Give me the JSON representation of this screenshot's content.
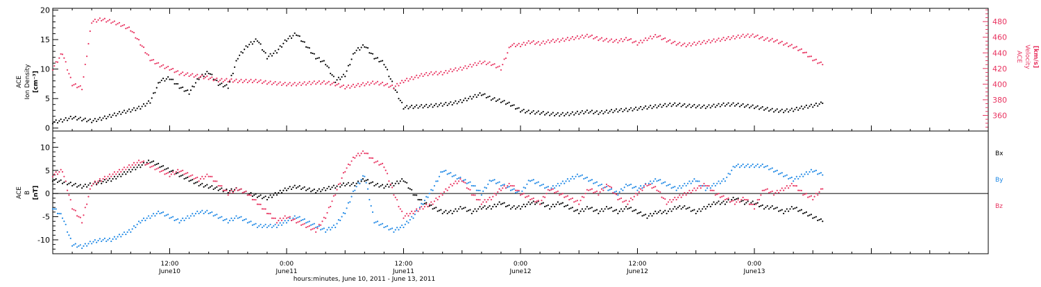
{
  "colors": {
    "black": "#000000",
    "pink": "#e8325f",
    "blue": "#1e88e5"
  },
  "chart_data": [
    {
      "type": "scatter",
      "panel": "top",
      "xlabel": "hours:minutes, June 10, 2011 - June 13, 2011",
      "xlim_hours": [
        0,
        96
      ],
      "x_ticks": [
        {
          "hours": 12,
          "time": "12:00",
          "day": "June10"
        },
        {
          "hours": 24,
          "time": "0:00",
          "day": "June11"
        },
        {
          "hours": 36,
          "time": "12:00",
          "day": "June11"
        },
        {
          "hours": 48,
          "time": "0:00",
          "day": "June12"
        },
        {
          "hours": 60,
          "time": "12:00",
          "day": "June12"
        },
        {
          "hours": 72,
          "time": "0:00",
          "day": "June13"
        }
      ],
      "y_left": {
        "label_lines": [
          "ACE",
          "Ion Density"
        ],
        "unit": "[cm⁻³]",
        "ylim": [
          -0.5,
          20.3
        ],
        "ticks": [
          "0",
          "5",
          "10",
          "15",
          "20"
        ],
        "tick_values": [
          0,
          5,
          10,
          15,
          20
        ],
        "color": "#000000"
      },
      "y_right": {
        "label_lines": [
          "ACE",
          "Velocity"
        ],
        "unit": "[km/s]",
        "ylim": [
          340,
          497
        ],
        "ticks": [
          "360",
          "380",
          "400",
          "420",
          "440",
          "460",
          "480"
        ],
        "tick_values": [
          360,
          380,
          400,
          420,
          440,
          460,
          480
        ],
        "color": "#e8325f"
      },
      "series": [
        {
          "axis": "left",
          "color": "#000000",
          "x_hours": [
            0,
            1,
            2,
            3,
            4,
            5,
            6,
            7,
            8,
            9,
            10,
            11,
            12,
            13,
            14,
            15,
            16,
            17,
            18,
            19,
            20,
            21,
            22,
            23,
            24,
            25,
            26,
            27,
            28,
            29,
            30,
            31,
            32,
            33,
            34,
            35,
            36,
            37,
            38,
            39,
            40,
            41,
            42,
            43,
            44,
            45,
            46,
            47,
            48,
            49,
            50,
            51,
            52,
            53,
            54,
            55,
            56,
            57,
            58,
            59,
            60,
            61,
            62,
            63,
            64,
            65,
            66,
            67,
            68,
            69,
            70,
            71,
            72,
            73,
            74,
            75,
            76,
            77,
            78,
            79
          ],
          "values": [
            1,
            1.3,
            1.8,
            1.5,
            1.2,
            1.6,
            2.1,
            2.6,
            3.0,
            3.5,
            4.5,
            8.0,
            8.5,
            7.0,
            6.0,
            8.5,
            9.5,
            7.5,
            7.0,
            12,
            14,
            15,
            12,
            13,
            15,
            16,
            14,
            12,
            11,
            8,
            9,
            13,
            14,
            12,
            11,
            7,
            3.5,
            3.6,
            3.7,
            3.8,
            4.0,
            4.2,
            4.6,
            5.2,
            5.8,
            5.0,
            4.6,
            4.0,
            3.0,
            2.7,
            2.6,
            2.4,
            2.3,
            2.4,
            2.6,
            2.8,
            2.6,
            2.8,
            3.0,
            3.1,
            3.3,
            3.5,
            3.7,
            3.9,
            4.0,
            3.8,
            3.7,
            3.6,
            3.8,
            4.0,
            4.0,
            3.8,
            3.6,
            3.3,
            3.0,
            2.9,
            3.1,
            3.5,
            3.8,
            4.2
          ]
        },
        {
          "axis": "right",
          "color": "#e8325f",
          "x_hours": [
            0,
            1,
            2,
            3,
            4,
            5,
            6,
            7,
            8,
            9,
            10,
            11,
            12,
            13,
            14,
            15,
            16,
            17,
            18,
            19,
            20,
            21,
            22,
            23,
            24,
            25,
            26,
            27,
            28,
            29,
            30,
            31,
            32,
            33,
            34,
            35,
            36,
            37,
            38,
            39,
            40,
            41,
            42,
            43,
            44,
            45,
            46,
            47,
            48,
            49,
            50,
            51,
            52,
            53,
            54,
            55,
            56,
            57,
            58,
            59,
            60,
            61,
            62,
            63,
            64,
            65,
            66,
            67,
            68,
            69,
            70,
            71,
            72,
            73,
            74,
            75,
            76,
            77,
            78,
            79
          ],
          "values": [
            420,
            440,
            400,
            395,
            480,
            483,
            480,
            476,
            470,
            452,
            432,
            424,
            420,
            414,
            412,
            410,
            408,
            405,
            405,
            404,
            404,
            404,
            402,
            401,
            400,
            400,
            401,
            402,
            402,
            400,
            396,
            398,
            400,
            402,
            400,
            396,
            404,
            408,
            412,
            414,
            414,
            418,
            420,
            424,
            428,
            426,
            420,
            450,
            450,
            454,
            452,
            455,
            456,
            458,
            460,
            462,
            458,
            456,
            455,
            458,
            452,
            458,
            462,
            456,
            452,
            450,
            452,
            454,
            456,
            458,
            460,
            462,
            462,
            458,
            456,
            452,
            448,
            442,
            432,
            425
          ]
        }
      ]
    },
    {
      "type": "scatter",
      "panel": "bottom",
      "y_label_lines": [
        "ACE",
        "B"
      ],
      "unit": "[nT]",
      "ylim": [
        -13,
        13.5
      ],
      "ticks": [
        "-10",
        "-5",
        "0",
        "5",
        "10"
      ],
      "tick_values": [
        -10,
        -5,
        0,
        5,
        10
      ],
      "zero_line": true,
      "legend": [
        "Bx",
        "By",
        "Bz"
      ],
      "legend_position": "right",
      "series": [
        {
          "name": "Bx",
          "color": "#000000",
          "x_hours": [
            0,
            1,
            2,
            3,
            4,
            5,
            6,
            7,
            8,
            9,
            10,
            11,
            12,
            13,
            14,
            15,
            16,
            17,
            18,
            19,
            20,
            21,
            22,
            23,
            24,
            25,
            26,
            27,
            28,
            29,
            30,
            31,
            32,
            33,
            34,
            35,
            36,
            37,
            38,
            39,
            40,
            41,
            42,
            43,
            44,
            45,
            46,
            47,
            48,
            49,
            50,
            51,
            52,
            53,
            54,
            55,
            56,
            57,
            58,
            59,
            60,
            61,
            62,
            63,
            64,
            65,
            66,
            67,
            68,
            69,
            70,
            71,
            72,
            73,
            74,
            75,
            76,
            77,
            78,
            79
          ],
          "values": [
            3,
            2.5,
            2,
            1.5,
            2,
            2.5,
            3,
            4,
            5,
            6,
            7,
            6,
            5,
            4,
            3,
            2,
            1.5,
            1,
            0.5,
            1,
            0,
            -0.5,
            -1,
            0,
            1,
            1.5,
            1,
            0.5,
            1,
            1.5,
            2,
            2,
            3,
            2,
            1.5,
            2,
            3,
            0,
            -2,
            -3,
            -4,
            -4,
            -3,
            -4,
            -3,
            -3,
            -2,
            -3,
            -3,
            -2,
            -2,
            -3,
            -2,
            -3,
            -4,
            -3,
            -4,
            -3,
            -4,
            -3,
            -4,
            -5,
            -4,
            -4,
            -3,
            -3,
            -4,
            -3,
            -2,
            -2,
            -1,
            -2,
            -2,
            -3,
            -3,
            -4,
            -3,
            -4,
            -5,
            -6
          ]
        },
        {
          "name": "By",
          "color": "#1e88e5",
          "x_hours": [
            0,
            1,
            2,
            3,
            4,
            5,
            6,
            7,
            8,
            9,
            10,
            11,
            12,
            13,
            14,
            15,
            16,
            17,
            18,
            19,
            20,
            21,
            22,
            23,
            24,
            25,
            26,
            27,
            28,
            29,
            30,
            31,
            32,
            33,
            34,
            35,
            36,
            37,
            38,
            39,
            40,
            41,
            42,
            43,
            44,
            45,
            46,
            47,
            48,
            49,
            50,
            51,
            52,
            53,
            54,
            55,
            56,
            57,
            58,
            59,
            60,
            61,
            62,
            63,
            64,
            65,
            66,
            67,
            68,
            69,
            70,
            71,
            72,
            73,
            74,
            75,
            76,
            77,
            78,
            79
          ],
          "values": [
            -3,
            -5,
            -11,
            -11.5,
            -10.5,
            -10,
            -10,
            -9,
            -8,
            -6,
            -5,
            -4,
            -5,
            -6,
            -5,
            -4,
            -4,
            -5,
            -6,
            -5,
            -6,
            -7,
            -7,
            -7,
            -6,
            -5,
            -6,
            -7,
            -8,
            -7,
            -4,
            1,
            4,
            -6,
            -7,
            -8,
            -7,
            -5,
            -2,
            1,
            5,
            4,
            3,
            2,
            0,
            3,
            2,
            1,
            0,
            3,
            2,
            1,
            2,
            3,
            4,
            3,
            2,
            1,
            0,
            2,
            1,
            2,
            3,
            2,
            1,
            2,
            3,
            1,
            2,
            3,
            6,
            6,
            6,
            6,
            5,
            4,
            3,
            4,
            5,
            4
          ]
        },
        {
          "name": "Bz",
          "color": "#e8325f",
          "x_hours": [
            0,
            1,
            2,
            3,
            4,
            5,
            6,
            7,
            8,
            9,
            10,
            11,
            12,
            13,
            14,
            15,
            16,
            17,
            18,
            19,
            20,
            21,
            22,
            23,
            24,
            25,
            26,
            27,
            28,
            29,
            30,
            31,
            32,
            33,
            34,
            35,
            36,
            37,
            38,
            39,
            40,
            41,
            42,
            43,
            44,
            45,
            46,
            47,
            48,
            49,
            50,
            51,
            52,
            53,
            54,
            55,
            56,
            57,
            58,
            59,
            60,
            61,
            62,
            63,
            64,
            65,
            66,
            67,
            68,
            69,
            70,
            71,
            72,
            73,
            74,
            75,
            76,
            77,
            78,
            79
          ],
          "values": [
            4,
            5,
            -3,
            -6,
            2,
            3,
            4,
            5,
            6,
            7,
            6,
            5,
            4,
            5,
            4,
            3,
            4,
            2,
            0,
            1,
            0,
            -2,
            -4,
            -6,
            -5,
            -6,
            -7,
            -8,
            -5,
            0,
            5,
            8,
            9,
            7,
            6,
            0,
            -5,
            -4,
            -3,
            -2,
            0,
            2,
            3,
            0,
            -2,
            -1,
            1,
            2,
            0,
            -1,
            -2,
            1,
            0,
            -1,
            -2,
            1,
            0,
            2,
            -1,
            -2,
            0,
            2,
            1,
            -2,
            -1,
            0,
            1,
            2,
            0,
            -1,
            -2,
            -1,
            -3,
            1,
            0,
            1,
            2,
            0,
            -1,
            1
          ]
        }
      ]
    }
  ]
}
